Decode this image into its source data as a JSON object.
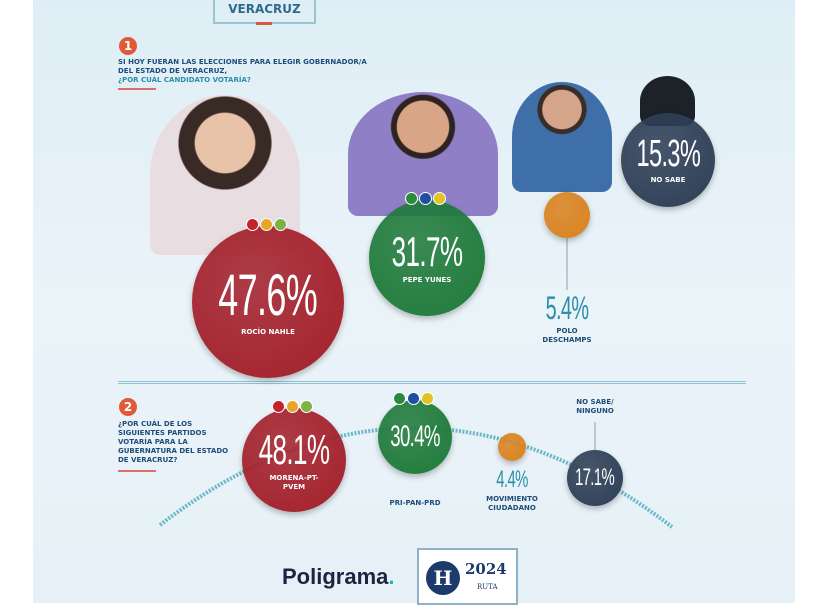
{
  "header": {
    "state": "VERACRUZ"
  },
  "q1": {
    "number": "1",
    "question_a": "SI HOY FUERAN LAS ELECCIONES PARA ELEGIR GOBERNADOR/A DEL ESTADO DE VERACRUZ,",
    "question_b": " ¿POR CUÁL CANDIDATO VOTARÍA?"
  },
  "q2": {
    "number": "2",
    "question": "¿POR CUÁL DE LOS SIGUIENTES PARTIDOS VOTARÍA PARA LA GUBERNATURA DEL ESTADO DE VERACRUZ?"
  },
  "chart_data": [
    {
      "type": "bubble",
      "title": "SI HOY FUERAN LAS ELECCIONES PARA ELEGIR GOBERNADOR/A DEL ESTADO DE VERACRUZ, ¿POR CUÁL CANDIDATO VOTARÍA?",
      "categories": [
        "ROCÍO NAHLE",
        "PEPE YUNES",
        "POLO DESCHAMPS",
        "NO SABE"
      ],
      "values": [
        47.6,
        31.7,
        5.4,
        15.3
      ],
      "labels": [
        "47.6%",
        "31.7%",
        "5.4%",
        "15.3%"
      ],
      "colors": [
        "#a3202b",
        "#1f7a3a",
        "#d9821e",
        "#2e3e55"
      ]
    },
    {
      "type": "bubble",
      "title": "¿POR CUÁL DE LOS SIGUIENTES PARTIDOS VOTARÍA PARA LA GUBERNATURA DEL ESTADO DE VERACRUZ?",
      "categories": [
        "MORENA-PT-PVEM",
        "PRI-PAN-PRD",
        "MOVIMIENTO CIUDADANO",
        "NO SABE/ NINGUNO"
      ],
      "values": [
        48.1,
        30.4,
        4.4,
        17.1
      ],
      "labels": [
        "48.1%",
        "30.4%",
        "4.4%",
        "17.1%"
      ],
      "colors": [
        "#a3202b",
        "#1f7a3a",
        "#d9821e",
        "#2e3e55"
      ]
    }
  ],
  "footer": {
    "brand": "Poligrama",
    "brand_dot": ".",
    "logo_letter": "H",
    "logo_year": "2024",
    "logo_sub": "RUTA"
  }
}
